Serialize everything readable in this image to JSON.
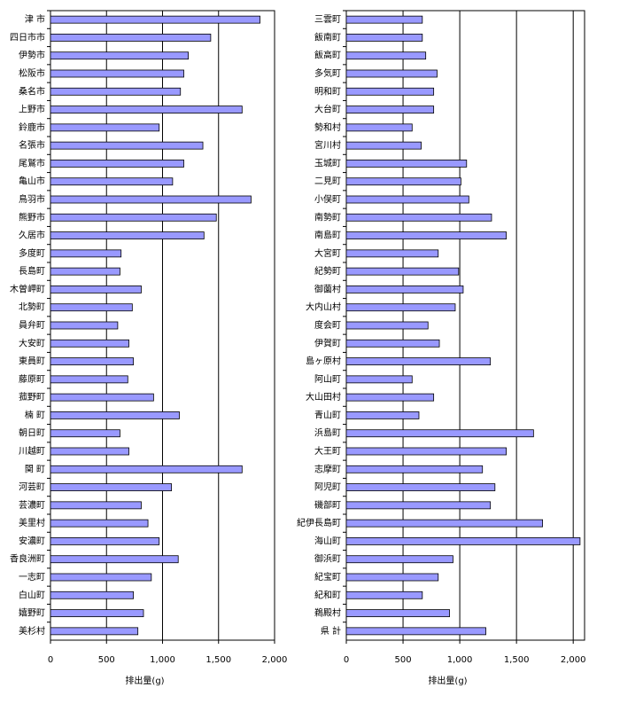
{
  "chart_data": [
    {
      "type": "bar",
      "orientation": "horizontal",
      "xlabel": "排出量(g)",
      "color": "#9999ff",
      "grid": true,
      "categories": [
        "津 市",
        "四日市市",
        "伊勢市",
        "松阪市",
        "桑名市",
        "上野市",
        "鈴鹿市",
        "名張市",
        "尾鷲市",
        "亀山市",
        "鳥羽市",
        "熊野市",
        "久居市",
        "多度町",
        "長島町",
        "木曽岬町",
        "北勢町",
        "員弁町",
        "大安町",
        "東員町",
        "藤原町",
        "菰野町",
        "楠 町",
        "朝日町",
        "川越町",
        "関 町",
        "河芸町",
        "芸濃町",
        "美里村",
        "安濃町",
        "香良洲町",
        "一志町",
        "白山町",
        "嬉野町",
        "美杉村"
      ],
      "values": [
        1870,
        1430,
        1230,
        1190,
        1160,
        1710,
        970,
        1360,
        1190,
        1090,
        1790,
        1480,
        1370,
        630,
        620,
        810,
        730,
        600,
        700,
        740,
        690,
        920,
        1150,
        620,
        700,
        1710,
        1080,
        810,
        870,
        970,
        1140,
        900,
        740,
        830,
        780
      ],
      "xlim": [
        0,
        2000
      ],
      "xticks": [
        0,
        500,
        {
          "value": 1000,
          "label": "1,000"
        },
        {
          "value": 1500,
          "label": "1,500"
        },
        {
          "value": 2000,
          "label": "2,000"
        }
      ]
    },
    {
      "type": "bar",
      "orientation": "horizontal",
      "xlabel": "排出量(g)",
      "color": "#9999ff",
      "grid": true,
      "categories": [
        "三雲町",
        "飯南町",
        "飯高町",
        "多気町",
        "明和町",
        "大台町",
        "勢和村",
        "宮川村",
        "玉城町",
        "二見町",
        "小俣町",
        "南勢町",
        "南島町",
        "大宮町",
        "紀勢町",
        "御薗村",
        "大内山村",
        "度会町",
        "伊賀町",
        "島ヶ原村",
        "阿山町",
        "大山田村",
        "青山町",
        "浜島町",
        "大王町",
        "志摩町",
        "阿児町",
        "磯部町",
        "紀伊長島町",
        "海山町",
        "御浜町",
        "紀宝町",
        "紀和町",
        "鵜殿村",
        "県 計"
      ],
      "values": [
        670,
        670,
        700,
        800,
        770,
        770,
        580,
        660,
        1060,
        1010,
        1080,
        1280,
        1410,
        810,
        990,
        1030,
        960,
        720,
        820,
        1270,
        580,
        770,
        640,
        1650,
        1410,
        1200,
        1310,
        1270,
        1730,
        2060,
        940,
        810,
        670,
        910,
        1230
      ],
      "xlim": [
        0,
        2100
      ],
      "xticks": [
        0,
        500,
        {
          "value": 1000,
          "label": "1,000"
        },
        {
          "value": 1500,
          "label": "1,500"
        },
        {
          "value": 2000,
          "label": "2,000"
        }
      ]
    }
  ]
}
